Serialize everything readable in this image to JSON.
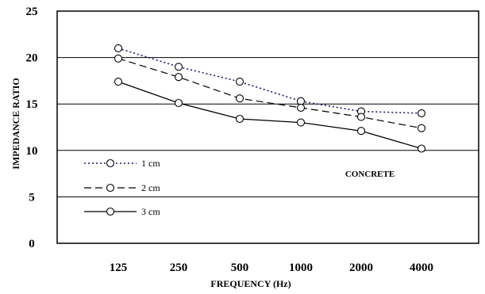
{
  "chart_data": {
    "type": "line",
    "title": "",
    "xlabel": "FREQUENCY (Hz)",
    "ylabel": "IMPEDANCE RATIO",
    "categories": [
      "125",
      "250",
      "500",
      "1000",
      "2000",
      "4000"
    ],
    "yticks": [
      "0",
      "5",
      "10",
      "15",
      "20",
      "25"
    ],
    "ylim": [
      0,
      25
    ],
    "grid": "horizontal",
    "legend_position": "left",
    "annotation": "CONCRETE",
    "series": [
      {
        "name": "1 cm",
        "style": "dotted",
        "color": "#1a1a66",
        "values": [
          21.0,
          19.0,
          17.4,
          15.3,
          14.2,
          14.0
        ]
      },
      {
        "name": "2 cm",
        "style": "dashed",
        "color": "#000000",
        "values": [
          19.9,
          17.9,
          15.6,
          14.6,
          13.6,
          12.4
        ]
      },
      {
        "name": "3 cm",
        "style": "solid",
        "color": "#000000",
        "values": [
          17.4,
          15.1,
          13.4,
          13.0,
          12.1,
          10.2
        ]
      }
    ]
  }
}
